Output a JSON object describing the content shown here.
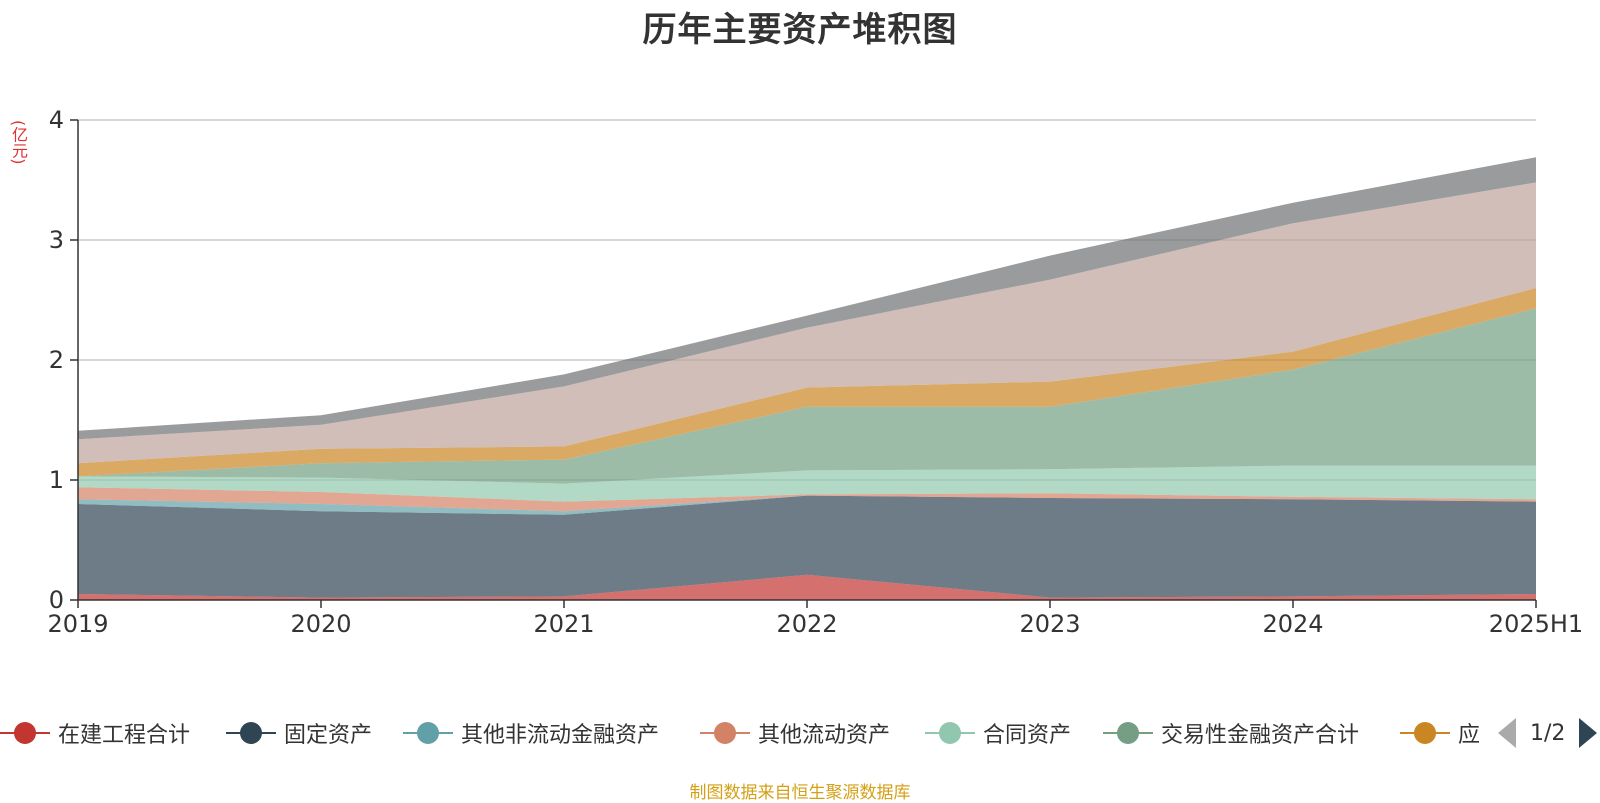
{
  "chart_data": {
    "type": "area",
    "stacked": true,
    "title": "历年主要资产堆积图",
    "unit_label": "(亿元)",
    "categories": [
      "2019",
      "2020",
      "2021",
      "2022",
      "2023",
      "2024",
      "2025H1"
    ],
    "y_ticks": [
      "0",
      "1",
      "2",
      "3",
      "4"
    ],
    "ylim": [
      0,
      4
    ],
    "grid": true,
    "series": [
      {
        "name": "在建工程合计",
        "color": "#c23531",
        "values": [
          0.05,
          0.02,
          0.03,
          0.21,
          0.02,
          0.03,
          0.05
        ]
      },
      {
        "name": "固定资产",
        "color": "#2f4554",
        "values": [
          0.75,
          0.72,
          0.68,
          0.66,
          0.83,
          0.81,
          0.77
        ]
      },
      {
        "name": "其他非流动金融资产",
        "color": "#61a0a8",
        "values": [
          0.04,
          0.06,
          0.03,
          0.0,
          0.0,
          0.0,
          0.0
        ]
      },
      {
        "name": "其他流动资产",
        "color": "#d48265",
        "values": [
          0.1,
          0.1,
          0.08,
          0.01,
          0.04,
          0.02,
          0.02
        ]
      },
      {
        "name": "合同资产",
        "color": "#91c7ae",
        "values": [
          0.09,
          0.12,
          0.15,
          0.2,
          0.2,
          0.26,
          0.28
        ]
      },
      {
        "name": "交易性金融资产合计",
        "color": "#749f83",
        "values": [
          0.0,
          0.12,
          0.2,
          0.53,
          0.52,
          0.8,
          1.31
        ]
      },
      {
        "name": "应",
        "color": "#ca8622",
        "values": [
          0.11,
          0.12,
          0.11,
          0.16,
          0.21,
          0.15,
          0.17
        ]
      },
      {
        "name": "",
        "color": "#bda29a",
        "values": [
          0.2,
          0.2,
          0.5,
          0.5,
          0.85,
          1.07,
          0.88
        ]
      },
      {
        "name": "",
        "color": "#6e7074",
        "values": [
          0.07,
          0.08,
          0.1,
          0.1,
          0.2,
          0.17,
          0.21
        ]
      }
    ]
  },
  "legend": {
    "pager_text": "1/2"
  },
  "source_note": "制图数据来自恒生聚源数据库"
}
